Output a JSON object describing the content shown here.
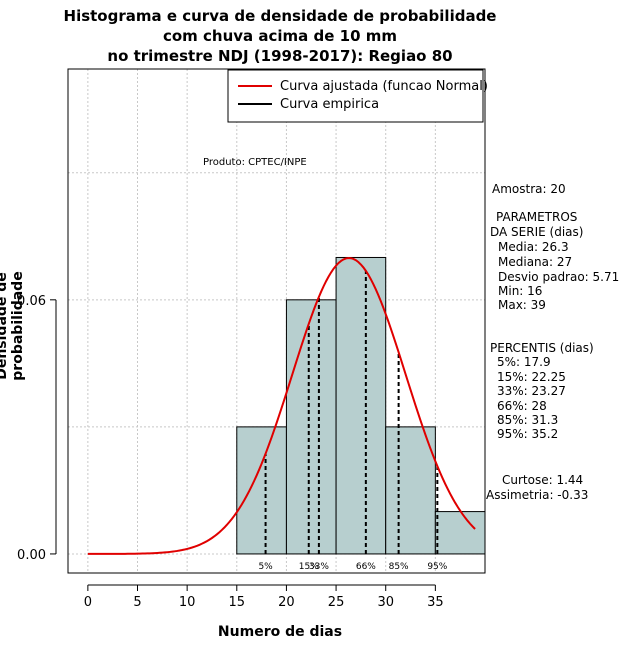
{
  "title": {
    "line1": "Histograma e curva de densidade de probabilidade",
    "line2": "com chuva acima de 10 mm",
    "line3": "no trimestre NDJ (1998-2017): Regiao 80"
  },
  "product_label": "Produto: CPTEC/INPE",
  "stats": {
    "amostra": "Amostra: 20",
    "param_title1": "PARAMETROS",
    "param_title2": "DA SERIE (dias)",
    "media": "Media: 26.3",
    "mediana": "Mediana: 27",
    "desvio": "Desvio padrao: 5.71",
    "min": "Min: 16",
    "max": "Max: 39",
    "percentis_title": "PERCENTIS (dias)",
    "p5": "5%: 17.9",
    "p15": "15%: 22.25",
    "p33": "33%: 23.27",
    "p66": "66%: 28",
    "p85": "85%: 31.3",
    "p95": "95%: 35.2",
    "curtose": "Curtose: 1.44",
    "assimetria": "Assimetria: -0.33"
  },
  "colors": {
    "bar_fill": "#b7cfcf",
    "curve": "#e00000",
    "grid": "#c8c8c8"
  },
  "chart_data": {
    "type": "bar",
    "subtype": "histogram with fitted normal curve",
    "title": "Histograma e curva de densidade de probabilidade com chuva acima de 10 mm no trimestre NDJ (1998-2017): Regiao 80",
    "xlabel": "Numero de dias",
    "ylabel": "Densidade de probabilidade",
    "xlim": [
      -2,
      40
    ],
    "ylim": [
      -0.0045,
      0.1145
    ],
    "x_ticks": [
      0,
      5,
      10,
      15,
      20,
      25,
      30,
      35
    ],
    "y_ticks": [
      0.0,
      0.06
    ],
    "y_tick_labels": [
      "0.00",
      "0.06"
    ],
    "grid": true,
    "bins": [
      {
        "start": 15,
        "end": 20,
        "density": 0.03
      },
      {
        "start": 20,
        "end": 25,
        "density": 0.06
      },
      {
        "start": 25,
        "end": 30,
        "density": 0.07
      },
      {
        "start": 30,
        "end": 35,
        "density": 0.03
      },
      {
        "start": 35,
        "end": 40,
        "density": 0.01
      }
    ],
    "normal_fit": {
      "mean": 26.3,
      "sd": 5.71,
      "x_range": [
        0,
        39
      ]
    },
    "percentiles": [
      {
        "label": "5%",
        "x": 17.9
      },
      {
        "label": "15%",
        "x": 22.25
      },
      {
        "label": "33%",
        "x": 23.27
      },
      {
        "label": "66%",
        "x": 28
      },
      {
        "label": "85%",
        "x": 31.3
      },
      {
        "label": "95%",
        "x": 35.2
      }
    ],
    "legend": {
      "position": "top-right",
      "entries": [
        {
          "label": "Curva ajustada (funcao Normal)",
          "color": "#e00000"
        },
        {
          "label": "Curva empirica",
          "color": "#000000"
        }
      ]
    }
  }
}
